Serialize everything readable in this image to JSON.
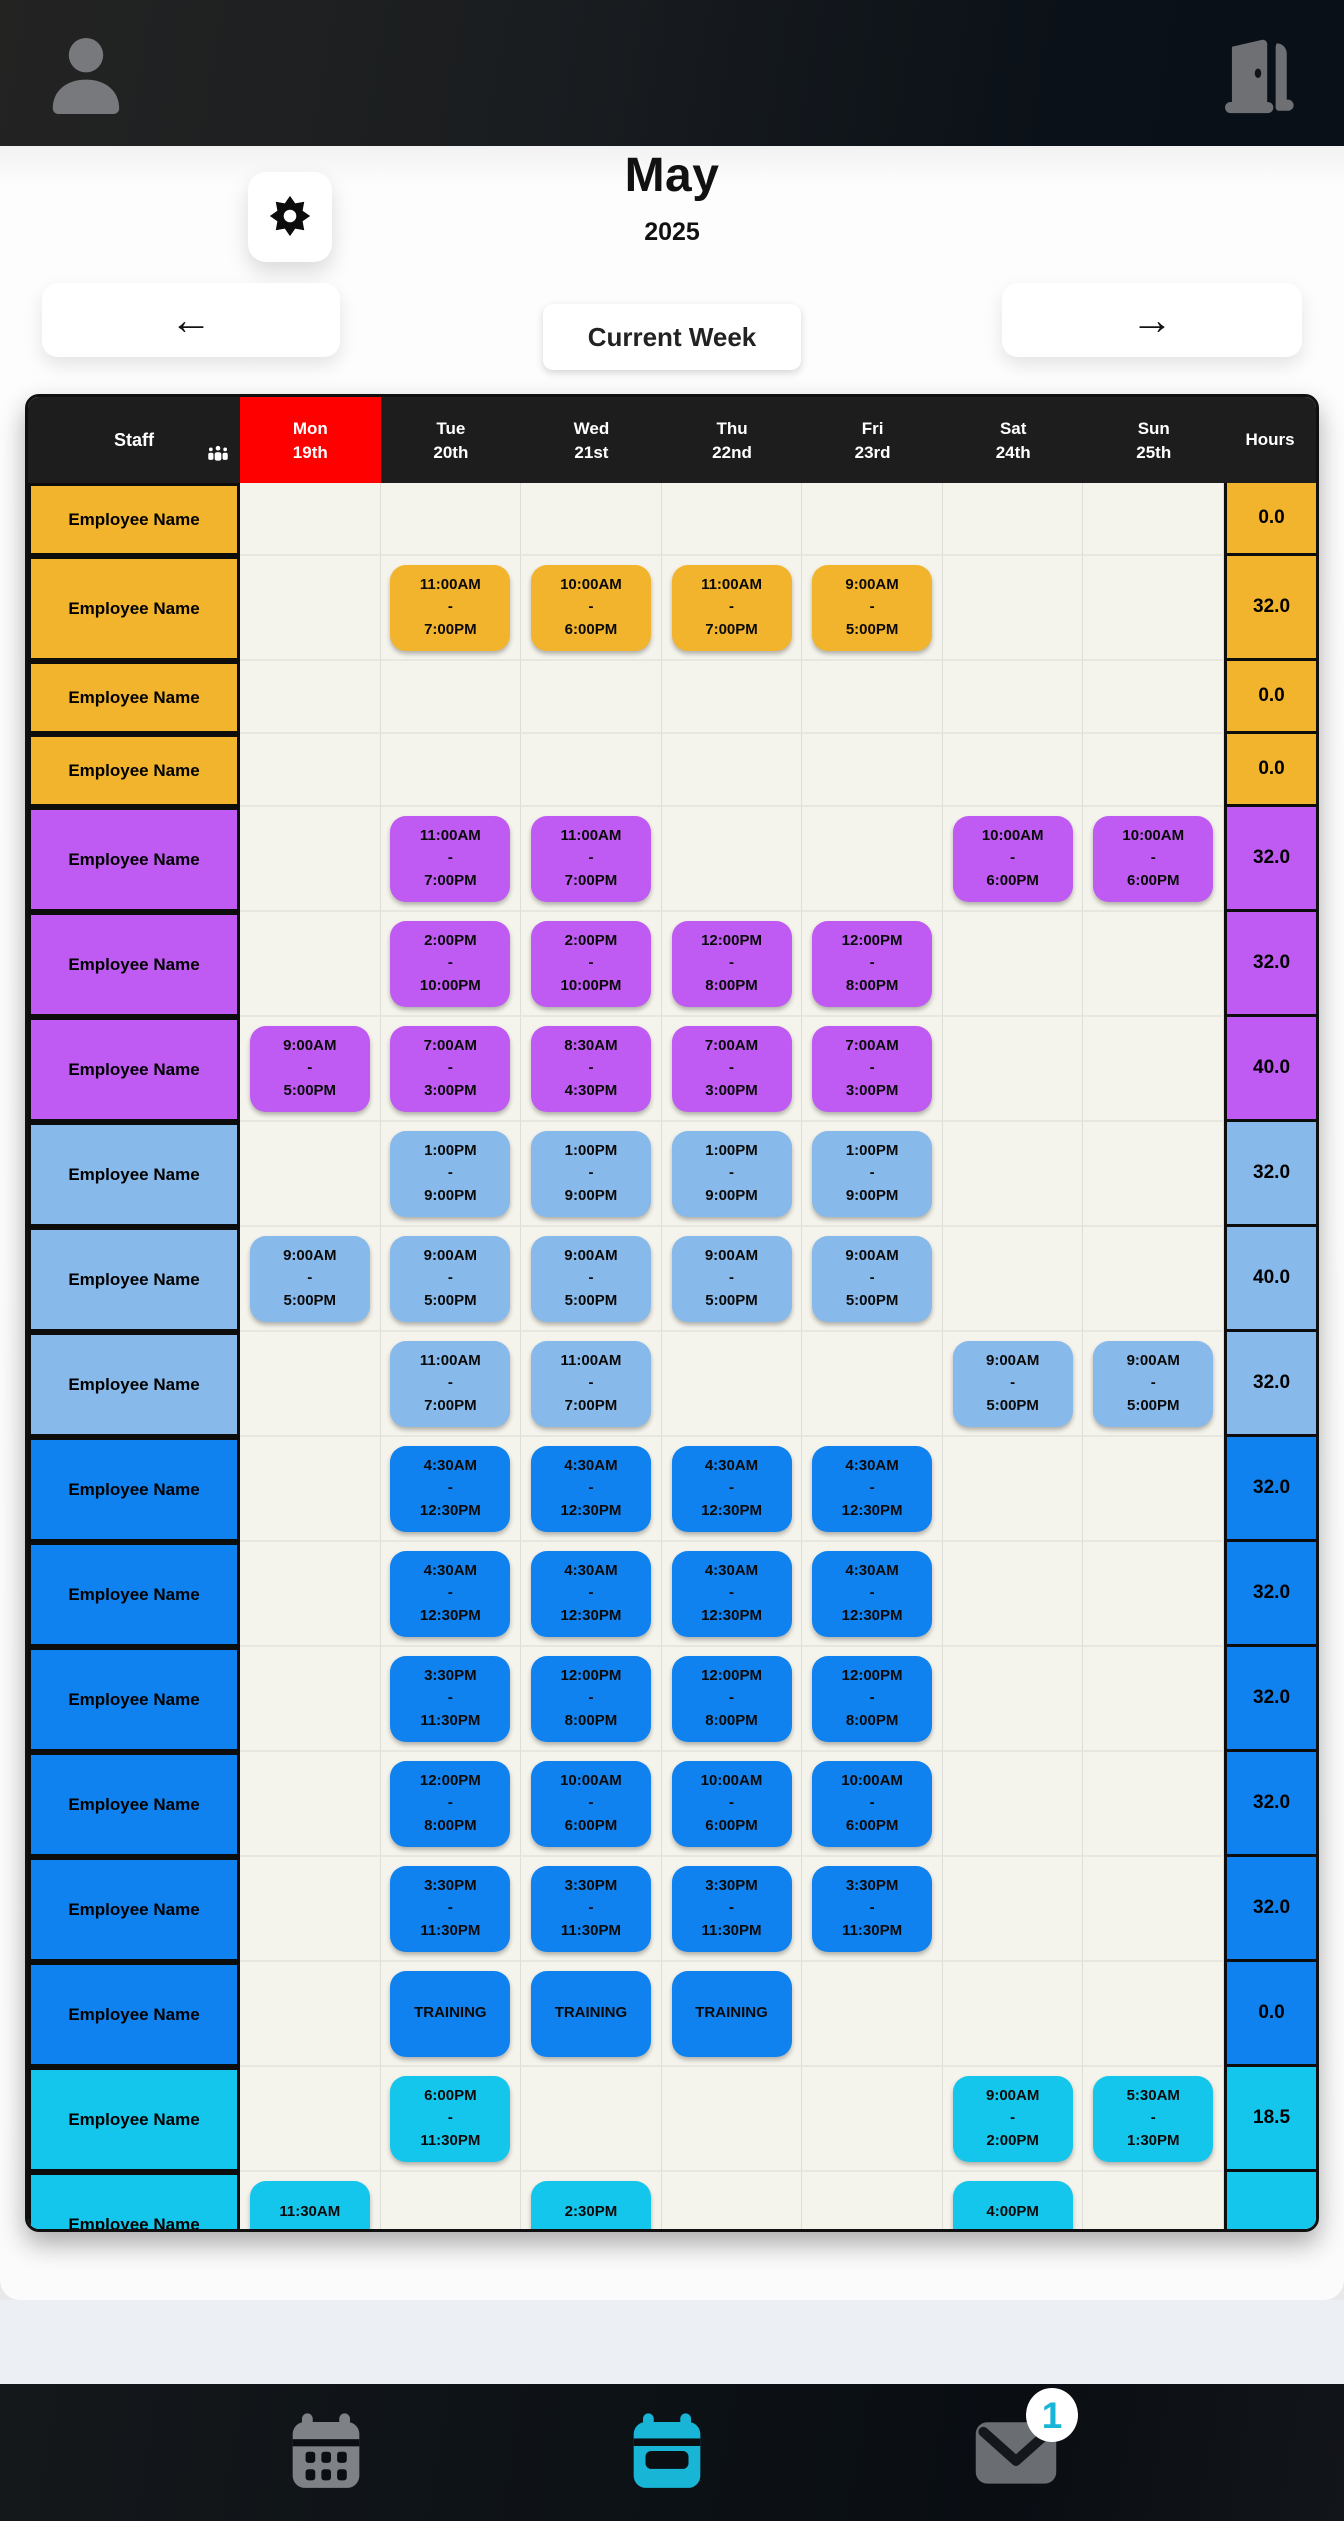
{
  "topbar": {
    "profile_icon": "person",
    "logout_icon": "open-door"
  },
  "header": {
    "month": "May",
    "year": "2025",
    "settings_icon": "gear",
    "prev_arrow": "←",
    "next_arrow": "→",
    "current_week_label": "Current Week"
  },
  "table": {
    "staff_header": "Staff",
    "staff_icon": "people-group",
    "hours_header": "Hours",
    "today_color": "#ff0000",
    "days": [
      {
        "name": "Mon",
        "date": "19th",
        "today": true
      },
      {
        "name": "Tue",
        "date": "20th",
        "today": false
      },
      {
        "name": "Wed",
        "date": "21st",
        "today": false
      },
      {
        "name": "Thu",
        "date": "22nd",
        "today": false
      },
      {
        "name": "Fri",
        "date": "23rd",
        "today": false
      },
      {
        "name": "Sat",
        "date": "24th",
        "today": false
      },
      {
        "name": "Sun",
        "date": "25th",
        "today": false
      }
    ],
    "group_colors": {
      "yellow": "#f2b42d",
      "purple": "#bf5af2",
      "lightblue": "#87b9ea",
      "blue": "#0f82f0",
      "cyan": "#15c6ec"
    },
    "rows": [
      {
        "name": "Employee Name",
        "color": "yellow",
        "hours": "0.0",
        "shifts": [
          null,
          null,
          null,
          null,
          null,
          null,
          null
        ]
      },
      {
        "name": "Employee Name",
        "color": "yellow",
        "hours": "32.0",
        "shifts": [
          null,
          {
            "start": "11:00AM",
            "end": "7:00PM"
          },
          {
            "start": "10:00AM",
            "end": "6:00PM"
          },
          {
            "start": "11:00AM",
            "end": "7:00PM"
          },
          {
            "start": "9:00AM",
            "end": "5:00PM"
          },
          null,
          null
        ]
      },
      {
        "name": "Employee Name",
        "color": "yellow",
        "hours": "0.0",
        "shifts": [
          null,
          null,
          null,
          null,
          null,
          null,
          null
        ]
      },
      {
        "name": "Employee Name",
        "color": "yellow",
        "hours": "0.0",
        "shifts": [
          null,
          null,
          null,
          null,
          null,
          null,
          null
        ]
      },
      {
        "name": "Employee Name",
        "color": "purple",
        "hours": "32.0",
        "shifts": [
          null,
          {
            "start": "11:00AM",
            "end": "7:00PM"
          },
          {
            "start": "11:00AM",
            "end": "7:00PM"
          },
          null,
          null,
          {
            "start": "10:00AM",
            "end": "6:00PM"
          },
          {
            "start": "10:00AM",
            "end": "6:00PM"
          }
        ]
      },
      {
        "name": "Employee Name",
        "color": "purple",
        "hours": "32.0",
        "shifts": [
          null,
          {
            "start": "2:00PM",
            "end": "10:00PM"
          },
          {
            "start": "2:00PM",
            "end": "10:00PM"
          },
          {
            "start": "12:00PM",
            "end": "8:00PM"
          },
          {
            "start": "12:00PM",
            "end": "8:00PM"
          },
          null,
          null
        ]
      },
      {
        "name": "Employee Name",
        "color": "purple",
        "hours": "40.0",
        "shifts": [
          {
            "start": "9:00AM",
            "end": "5:00PM"
          },
          {
            "start": "7:00AM",
            "end": "3:00PM"
          },
          {
            "start": "8:30AM",
            "end": "4:30PM"
          },
          {
            "start": "7:00AM",
            "end": "3:00PM"
          },
          {
            "start": "7:00AM",
            "end": "3:00PM"
          },
          null,
          null
        ]
      },
      {
        "name": "Employee Name",
        "color": "lightblue",
        "hours": "32.0",
        "shifts": [
          null,
          {
            "start": "1:00PM",
            "end": "9:00PM"
          },
          {
            "start": "1:00PM",
            "end": "9:00PM"
          },
          {
            "start": "1:00PM",
            "end": "9:00PM"
          },
          {
            "start": "1:00PM",
            "end": "9:00PM"
          },
          null,
          null
        ]
      },
      {
        "name": "Employee Name",
        "color": "lightblue",
        "hours": "40.0",
        "shifts": [
          {
            "start": "9:00AM",
            "end": "5:00PM"
          },
          {
            "start": "9:00AM",
            "end": "5:00PM"
          },
          {
            "start": "9:00AM",
            "end": "5:00PM"
          },
          {
            "start": "9:00AM",
            "end": "5:00PM"
          },
          {
            "start": "9:00AM",
            "end": "5:00PM"
          },
          null,
          null
        ]
      },
      {
        "name": "Employee Name",
        "color": "lightblue",
        "hours": "32.0",
        "shifts": [
          null,
          {
            "start": "11:00AM",
            "end": "7:00PM"
          },
          {
            "start": "11:00AM",
            "end": "7:00PM"
          },
          null,
          null,
          {
            "start": "9:00AM",
            "end": "5:00PM"
          },
          {
            "start": "9:00AM",
            "end": "5:00PM"
          }
        ]
      },
      {
        "name": "Employee Name",
        "color": "blue",
        "hours": "32.0",
        "shifts": [
          null,
          {
            "start": "4:30AM",
            "end": "12:30PM"
          },
          {
            "start": "4:30AM",
            "end": "12:30PM"
          },
          {
            "start": "4:30AM",
            "end": "12:30PM"
          },
          {
            "start": "4:30AM",
            "end": "12:30PM"
          },
          null,
          null
        ]
      },
      {
        "name": "Employee Name",
        "color": "blue",
        "hours": "32.0",
        "shifts": [
          null,
          {
            "start": "4:30AM",
            "end": "12:30PM"
          },
          {
            "start": "4:30AM",
            "end": "12:30PM"
          },
          {
            "start": "4:30AM",
            "end": "12:30PM"
          },
          {
            "start": "4:30AM",
            "end": "12:30PM"
          },
          null,
          null
        ]
      },
      {
        "name": "Employee Name",
        "color": "blue",
        "hours": "32.0",
        "shifts": [
          null,
          {
            "start": "3:30PM",
            "end": "11:30PM"
          },
          {
            "start": "12:00PM",
            "end": "8:00PM"
          },
          {
            "start": "12:00PM",
            "end": "8:00PM"
          },
          {
            "start": "12:00PM",
            "end": "8:00PM"
          },
          null,
          null
        ]
      },
      {
        "name": "Employee Name",
        "color": "blue",
        "hours": "32.0",
        "shifts": [
          null,
          {
            "start": "12:00PM",
            "end": "8:00PM"
          },
          {
            "start": "10:00AM",
            "end": "6:00PM"
          },
          {
            "start": "10:00AM",
            "end": "6:00PM"
          },
          {
            "start": "10:00AM",
            "end": "6:00PM"
          },
          null,
          null
        ]
      },
      {
        "name": "Employee Name",
        "color": "blue",
        "hours": "32.0",
        "shifts": [
          null,
          {
            "start": "3:30PM",
            "end": "11:30PM"
          },
          {
            "start": "3:30PM",
            "end": "11:30PM"
          },
          {
            "start": "3:30PM",
            "end": "11:30PM"
          },
          {
            "start": "3:30PM",
            "end": "11:30PM"
          },
          null,
          null
        ]
      },
      {
        "name": "Employee Name",
        "color": "blue",
        "hours": "0.0",
        "shifts": [
          null,
          {
            "label": "TRAINING"
          },
          {
            "label": "TRAINING"
          },
          {
            "label": "TRAINING"
          },
          null,
          null,
          null
        ]
      },
      {
        "name": "Employee Name",
        "color": "cyan",
        "hours": "18.5",
        "shifts": [
          null,
          {
            "start": "6:00PM",
            "end": "11:30PM"
          },
          null,
          null,
          null,
          {
            "start": "9:00AM",
            "end": "2:00PM"
          },
          {
            "start": "5:30AM",
            "end": "1:30PM"
          }
        ]
      },
      {
        "name": "Employee Name",
        "color": "cyan",
        "hours": "",
        "clipped": true,
        "shifts": [
          {
            "start": "11:30AM",
            "end": ""
          },
          null,
          {
            "start": "2:30PM",
            "end": ""
          },
          null,
          null,
          {
            "start": "4:00PM",
            "end": ""
          },
          null
        ]
      }
    ]
  },
  "nav": {
    "accent": "#19b5d6",
    "items": [
      {
        "icon": "calendar-grid",
        "id": "month-view",
        "active": false,
        "badge": ""
      },
      {
        "icon": "calendar-week",
        "id": "week-view",
        "active": true,
        "badge": ""
      },
      {
        "icon": "envelope",
        "id": "messages",
        "active": false,
        "badge": "1"
      }
    ]
  }
}
